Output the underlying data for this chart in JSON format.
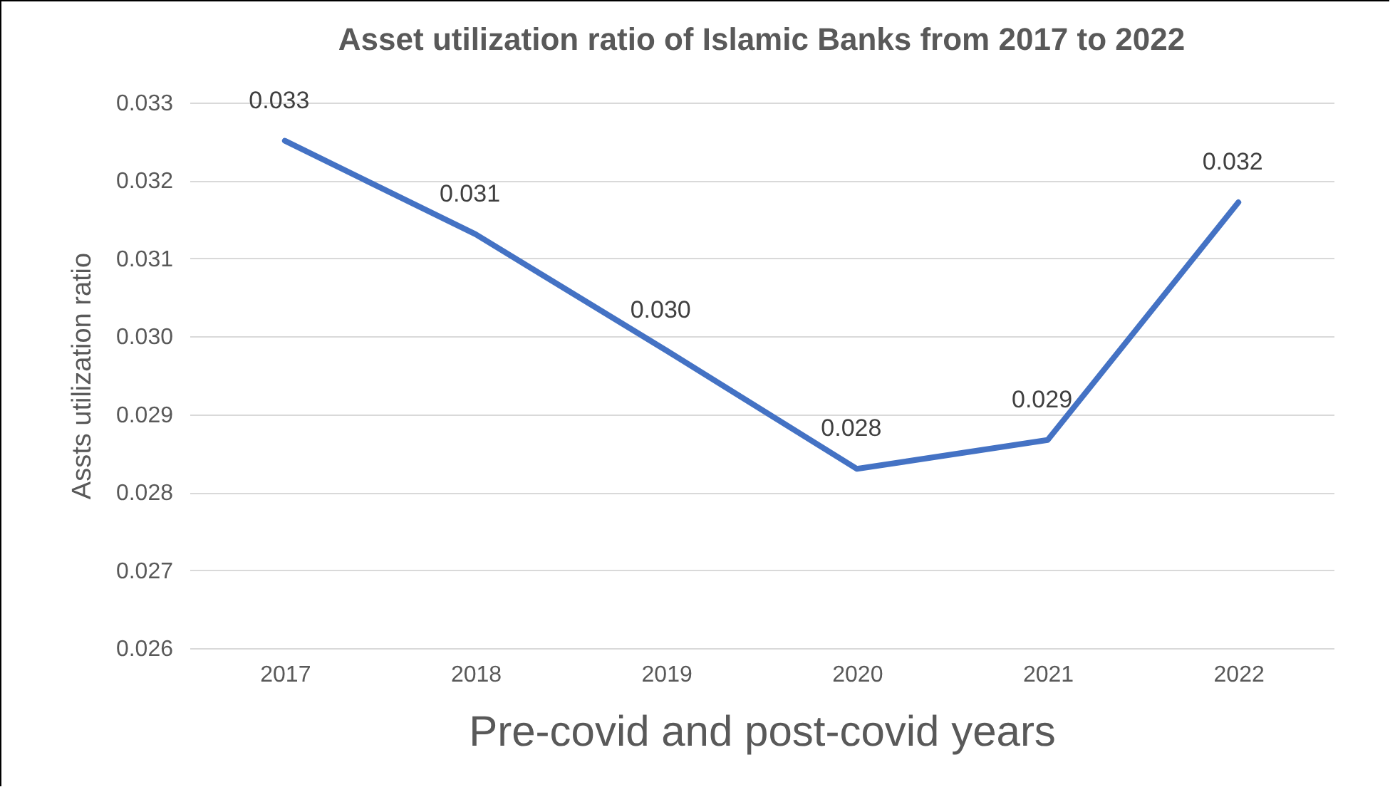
{
  "chart_data": {
    "type": "line",
    "title": "Asset utilization ratio of Islamic Banks from 2017 to 2022",
    "xlabel": "Pre-covid and post-covid years",
    "ylabel": "Assts utilization ratio",
    "categories": [
      "2017",
      "2018",
      "2019",
      "2020",
      "2021",
      "2022"
    ],
    "series": [
      {
        "color": "#4472c4",
        "values": [
          0.03251,
          0.03131,
          0.02982,
          0.0283,
          0.02867,
          0.03172
        ],
        "value_labels": [
          "0.033",
          "0.031",
          "0.030",
          "0.028",
          "0.029",
          "0.032"
        ]
      }
    ],
    "ylim": [
      0.026,
      0.033
    ],
    "yticks": [
      0.026,
      0.027,
      0.028,
      0.029,
      {
        "value": 0.03,
        "label": "0.030"
      },
      0.031,
      0.032,
      0.033
    ],
    "grid": "y",
    "marker": "none",
    "line_style": "solid"
  }
}
